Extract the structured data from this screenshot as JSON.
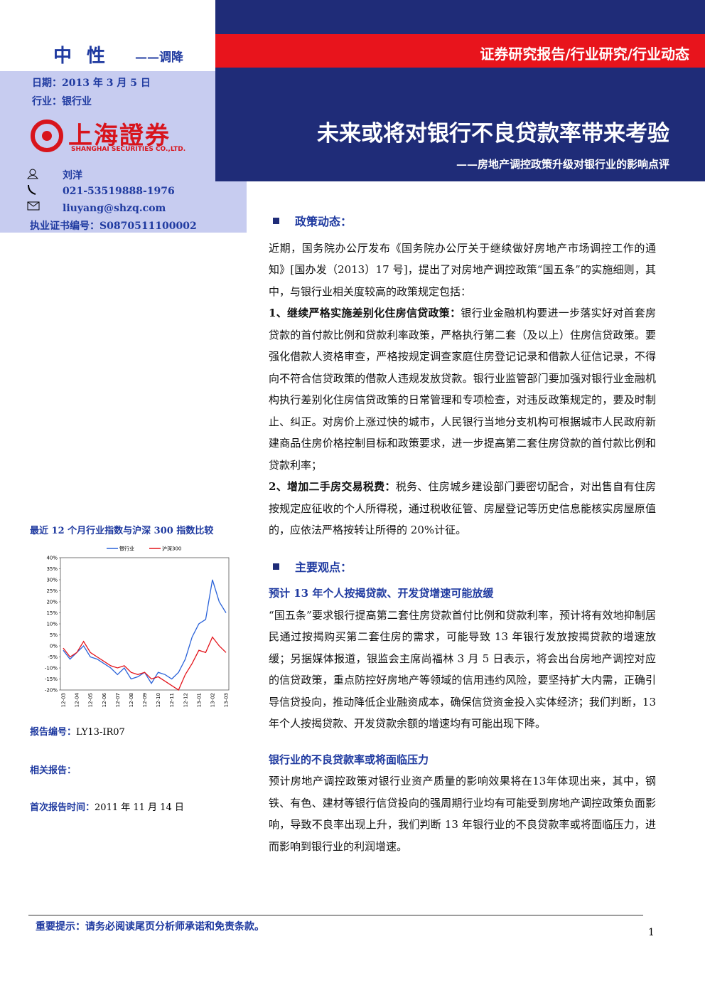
{
  "header": {
    "rating": "中 性",
    "rating_change": "——调降",
    "category": "证券研究报告/行业研究/行业动态",
    "title": "未来或将对银行不良贷款率带来考验",
    "subtitle": "——房地产调控政策升级对银行业的影响点评"
  },
  "info": {
    "date": "日期：2013 年 3 月 5 日",
    "industry": "行业：银行业"
  },
  "logo": {
    "name": "上海證券",
    "english": "SHANGHAI SECURITIES CO.,LTD."
  },
  "analyst": {
    "name": "刘洋",
    "phone": "021-53519888-1976",
    "email": "liuyang@shzq.com",
    "license": "执业证书编号：S0870511100002"
  },
  "chart_data": {
    "type": "line",
    "title": "最近 12 个月行业指数与沪深 300 指数比较",
    "categories": [
      "12-03",
      null,
      "12-04",
      null,
      "12-05",
      null,
      "12-06",
      null,
      "12-07",
      null,
      "12-08",
      null,
      "12-09",
      null,
      "12-10",
      null,
      "12-11",
      null,
      "12-12",
      null,
      "13-01",
      null,
      "13-02",
      null,
      "13-03"
    ],
    "series": [
      {
        "name": "银行业",
        "color": "#2b63d9",
        "values": [
          -2,
          -6,
          -3,
          0,
          -5,
          -6,
          -8,
          -10,
          -13,
          -10,
          -15,
          -14,
          -12,
          -17,
          -12,
          -13,
          -15,
          -12,
          -6,
          4,
          10,
          12,
          30,
          20,
          15
        ]
      },
      {
        "name": "沪深300",
        "color": "#e3141b",
        "values": [
          -1,
          -5,
          -3,
          2,
          -3,
          -5,
          -7,
          -9,
          -10,
          -9,
          -12,
          -13,
          -12,
          -15,
          -14,
          -16,
          -18,
          -20,
          -13,
          -8,
          -2,
          -3,
          4,
          0,
          -3
        ]
      }
    ],
    "ylim": [
      -20,
      40
    ],
    "yticks": [
      {
        "value": -20,
        "label": "-20%"
      },
      {
        "value": -15,
        "label": "-15%"
      },
      {
        "value": -10,
        "label": "-10%"
      },
      {
        "value": -5,
        "label": "-5%"
      },
      {
        "value": 0,
        "label": "0%"
      },
      {
        "value": 5,
        "label": "5%"
      },
      {
        "value": 10,
        "label": "10%"
      },
      {
        "value": 15,
        "label": "15%"
      },
      {
        "value": 20,
        "label": "20%"
      },
      {
        "value": 25,
        "label": "25%"
      },
      {
        "value": 30,
        "label": "30%"
      },
      {
        "value": 35,
        "label": "35%"
      },
      {
        "value": 40,
        "label": "40%"
      }
    ],
    "legend": "top"
  },
  "report": {
    "number_label": "报告编号：",
    "number": "LY13-IR07",
    "related_label": "相关报告：",
    "first_label": "首次报告时间：",
    "first": "2011 年 11 月 14 日"
  },
  "sections": [
    {
      "heading": "政策动态：",
      "paragraphs": [
        {
          "text": "近期，国务院办公厅发布《国务院办公厅关于继续做好房地产市场调控工作的通知》[国办发（2013）17 号]，提出了对房地产调控政策“国五条”的实施细则，其中，与银行业相关度较高的政策规定包括："
        },
        {
          "lead": "1、继续严格实施差别化住房信贷政策：",
          "text": "银行业金融机构要进一步落实好对首套房贷款的首付款比例和贷款利率政策，严格执行第二套（及以上）住房信贷政策。要强化借款人资格审查，严格按规定调查家庭住房登记记录和借款人征信记录，不得向不符合信贷政策的借款人违规发放贷款。银行业监管部门要加强对银行业金融机构执行差别化住房信贷政策的日常管理和专项检查，对违反政策规定的，要及时制止、纠正。对房价上涨过快的城市，人民银行当地分支机构可根据城市人民政府新建商品住房价格控制目标和政策要求，进一步提高第二套住房贷款的首付款比例和贷款利率；"
        },
        {
          "lead": "2、增加二手房交易税费：",
          "text": "税务、住房城乡建设部门要密切配合，对出售自有住房按规定应征收的个人所得税，通过税收征管、房屋登记等历史信息能核实房屋原值的，应依法严格按转让所得的 20%计征。"
        }
      ]
    },
    {
      "heading": "主要观点：",
      "subsections": [
        {
          "subheading": "预计 13 年个人按揭贷款、开发贷增速可能放缓",
          "text": "“国五条”要求银行提高第二套住房贷款首付比例和贷款利率，预计将有效地抑制居民通过按揭购买第二套住房的需求，可能导致 13 年银行发放按揭贷款的增速放缓；另据媒体报道，银监会主席尚福林 3 月 5 日表示，将会出台房地产调控对应的信贷政策，重点防控好房地产等领域的信用违约风险，要坚持扩大内需，正确引导信贷投向，推动降低企业融资成本，确保信贷资金投入实体经济；我们判断，13 年个人按揭贷款、开发贷款余额的增速均有可能出现下降。"
        },
        {
          "subheading": "银行业的不良贷款率或将面临压力",
          "text": "预计房地产调控政策对银行业资产质量的影响效果将在13年体现出来，其中，钢铁、有色、建材等银行信贷投向的强周期行业均有可能受到房地产调控政策负面影响，导致不良率出现上升，我们判断 13 年银行业的不良贷款率或将面临压力，进而影响到银行业的利润增速。"
        }
      ]
    }
  ],
  "footer": {
    "note": "重要提示：请务必阅读尾页分析师承诺和免责条款。",
    "page": "1"
  }
}
